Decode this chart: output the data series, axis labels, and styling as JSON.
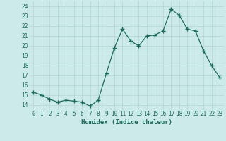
{
  "x": [
    0,
    1,
    2,
    3,
    4,
    5,
    6,
    7,
    8,
    9,
    10,
    11,
    12,
    13,
    14,
    15,
    16,
    17,
    18,
    19,
    20,
    21,
    22,
    23
  ],
  "y": [
    15.3,
    15.0,
    14.6,
    14.3,
    14.5,
    14.4,
    14.3,
    13.9,
    14.5,
    17.2,
    19.8,
    21.7,
    20.5,
    20.0,
    21.0,
    21.1,
    21.5,
    23.7,
    23.1,
    21.7,
    21.5,
    19.5,
    18.0,
    16.8
  ],
  "xlabel": "Humidex (Indice chaleur)",
  "xlim": [
    -0.5,
    23.5
  ],
  "ylim": [
    13.5,
    24.5
  ],
  "yticks": [
    14,
    15,
    16,
    17,
    18,
    19,
    20,
    21,
    22,
    23,
    24
  ],
  "xtick_labels": [
    "0",
    "1",
    "2",
    "3",
    "4",
    "5",
    "6",
    "7",
    "8",
    "9",
    "10",
    "11",
    "12",
    "13",
    "14",
    "15",
    "16",
    "17",
    "18",
    "19",
    "20",
    "21",
    "22",
    "23"
  ],
  "line_color": "#1a6b5a",
  "marker": "+",
  "marker_size": 4,
  "marker_linewidth": 1.0,
  "bg_color": "#cdeaea",
  "grid_color": "#b8d8d8",
  "tick_fontsize": 5.5,
  "xlabel_fontsize": 6.5,
  "xlabel_color": "#1a6b5a"
}
